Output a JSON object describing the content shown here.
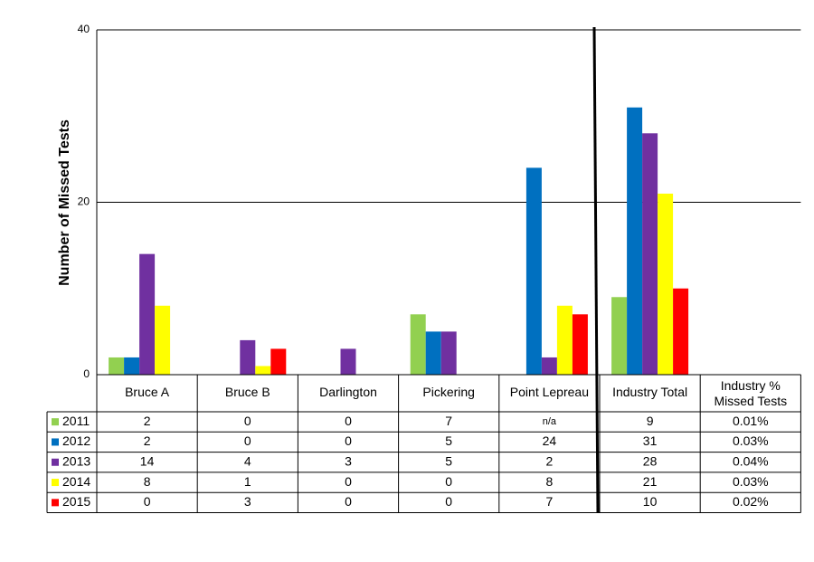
{
  "chart_data": {
    "type": "bar",
    "y_label": "Number of Missed Tests",
    "categories": [
      "Bruce A",
      "Bruce B",
      "Darlington",
      "Pickering",
      "Point Lepreau",
      "Industry Total"
    ],
    "percent_header": "Industry % Missed Tests",
    "ylim": [
      0,
      40
    ],
    "yticks": [
      0,
      20,
      40
    ],
    "grid": true,
    "series": [
      {
        "name": "2011",
        "color": "#92d050",
        "values": [
          2,
          0,
          0,
          7,
          null,
          9
        ],
        "value_labels": [
          "2",
          "0",
          "0",
          "7",
          "n/a",
          "9"
        ],
        "percent": "0.01%"
      },
      {
        "name": "2012",
        "color": "#0070c0",
        "values": [
          2,
          0,
          0,
          5,
          24,
          31
        ],
        "percent": "0.03%"
      },
      {
        "name": "2013",
        "color": "#7030a0",
        "values": [
          14,
          4,
          3,
          5,
          2,
          28
        ],
        "percent": "0.04%"
      },
      {
        "name": "2014",
        "color": "#ffff00",
        "values": [
          8,
          1,
          0,
          0,
          8,
          21
        ],
        "percent": "0.03%"
      },
      {
        "name": "2015",
        "color": "#ff0000",
        "values": [
          0,
          3,
          0,
          0,
          7,
          10
        ],
        "percent": "0.02%"
      }
    ]
  }
}
